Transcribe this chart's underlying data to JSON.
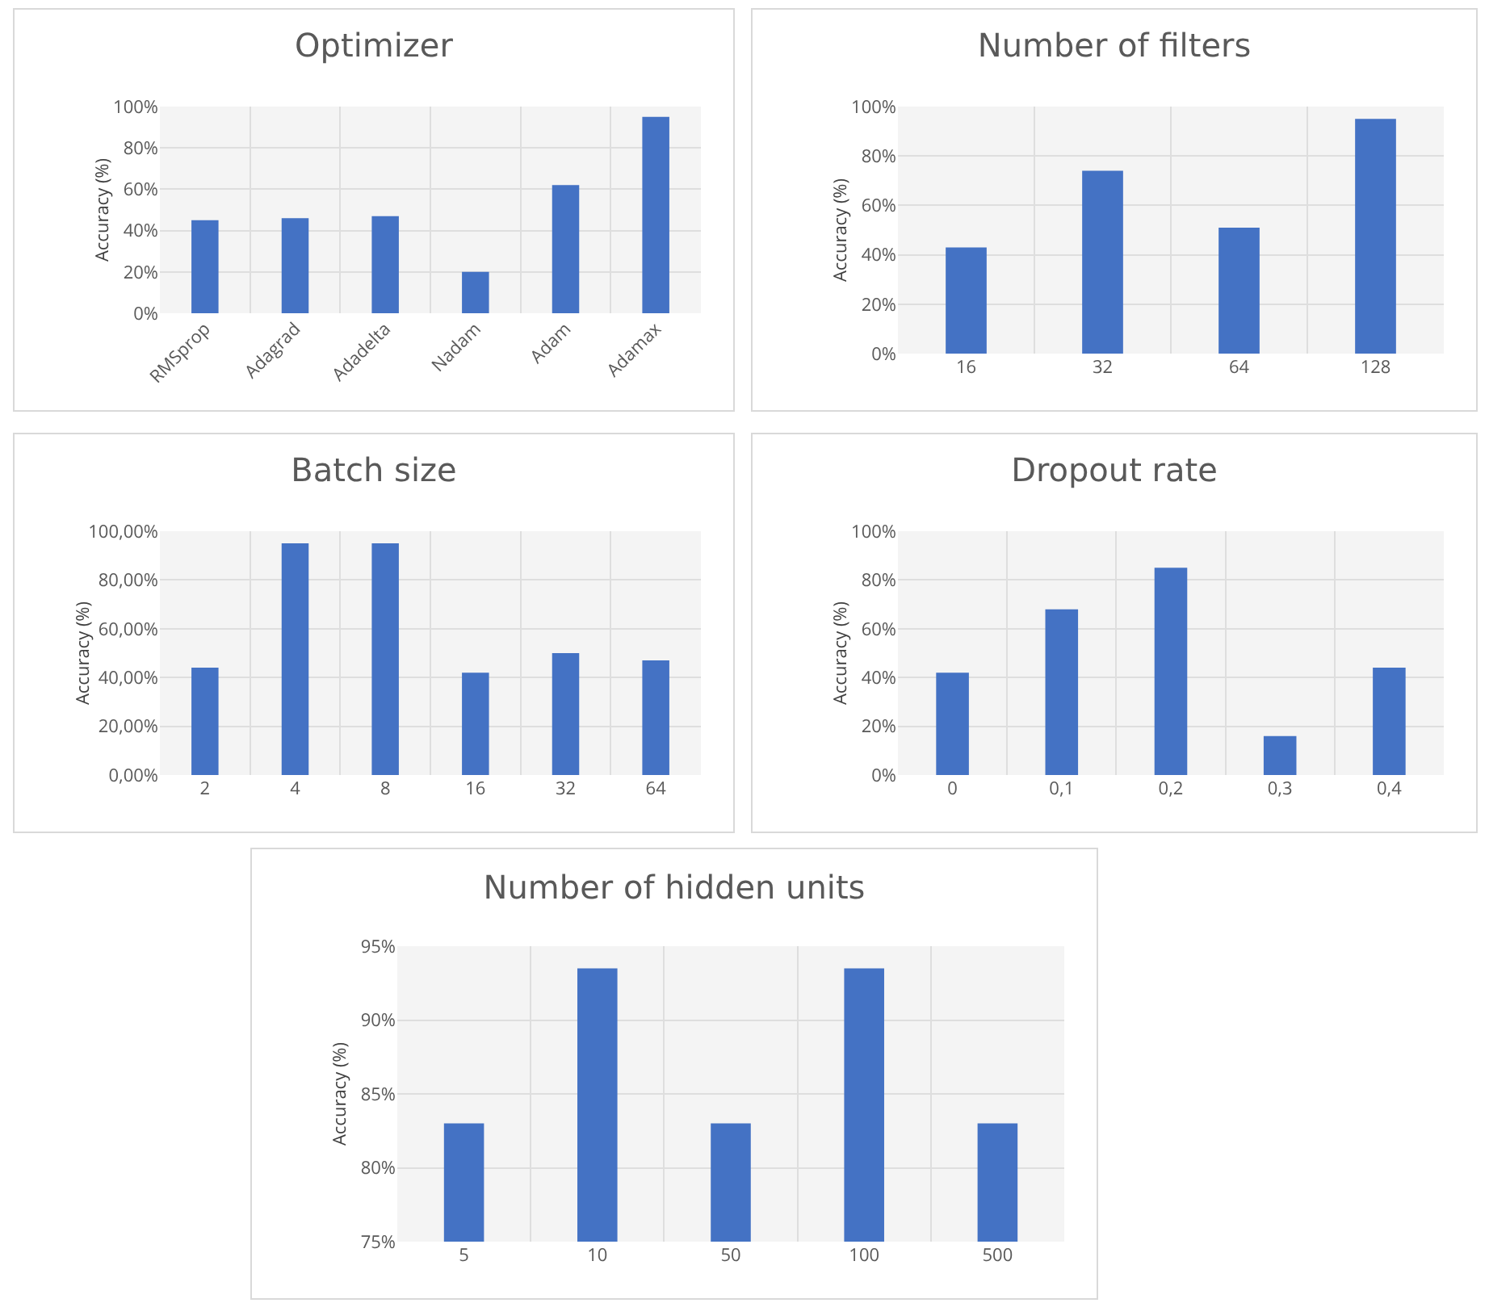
{
  "chart_data": [
    {
      "type": "bar",
      "title": "Optimizer",
      "ylabel": "Accuracy (%)",
      "categories": [
        "RMSprop",
        "Adagrad",
        "Adadelta",
        "Nadam",
        "Adam",
        "Adamax"
      ],
      "values": [
        45,
        46,
        47,
        20,
        62,
        95
      ],
      "color": "#4472c4",
      "ylim": [
        0,
        100
      ],
      "yticks": [
        {
          "value": 0,
          "label": "0%"
        },
        {
          "value": 20,
          "label": "20%"
        },
        {
          "value": 40,
          "label": "40%"
        },
        {
          "value": 60,
          "label": "60%"
        },
        {
          "value": 80,
          "label": "80%"
        },
        {
          "value": 100,
          "label": "100%"
        }
      ],
      "grid": true
    },
    {
      "type": "bar",
      "title": "Number of filters",
      "ylabel": "Accuracy (%)",
      "categories": [
        "16",
        "32",
        "64",
        "128"
      ],
      "values": [
        43,
        74,
        51,
        95
      ],
      "color": "#4472c4",
      "ylim": [
        0,
        100
      ],
      "yticks": [
        {
          "value": 0,
          "label": "0%"
        },
        {
          "value": 20,
          "label": "20%"
        },
        {
          "value": 40,
          "label": "40%"
        },
        {
          "value": 60,
          "label": "60%"
        },
        {
          "value": 80,
          "label": "80%"
        },
        {
          "value": 100,
          "label": "100%"
        }
      ],
      "grid": true
    },
    {
      "type": "bar",
      "title": "Batch size",
      "ylabel": "Accuracy (%)",
      "categories": [
        "2",
        "4",
        "8",
        "16",
        "32",
        "64"
      ],
      "values": [
        44,
        95,
        95,
        42,
        50,
        47
      ],
      "color": "#4472c4",
      "ylim": [
        0,
        100
      ],
      "yticks": [
        {
          "value": 0,
          "label": "0,00%"
        },
        {
          "value": 20,
          "label": "20,00%"
        },
        {
          "value": 40,
          "label": "40,00%"
        },
        {
          "value": 60,
          "label": "60,00%"
        },
        {
          "value": 80,
          "label": "80,00%"
        },
        {
          "value": 100,
          "label": "100,00%"
        }
      ],
      "grid": true
    },
    {
      "type": "bar",
      "title": "Dropout rate",
      "ylabel": "Accuracy (%)",
      "categories": [
        "0",
        "0,1",
        "0,2",
        "0,3",
        "0,4"
      ],
      "values": [
        42,
        68,
        85,
        16,
        44
      ],
      "color": "#4472c4",
      "ylim": [
        0,
        100
      ],
      "yticks": [
        {
          "value": 0,
          "label": "0%"
        },
        {
          "value": 20,
          "label": "20%"
        },
        {
          "value": 40,
          "label": "40%"
        },
        {
          "value": 60,
          "label": "60%"
        },
        {
          "value": 80,
          "label": "80%"
        },
        {
          "value": 100,
          "label": "100%"
        }
      ],
      "grid": true
    },
    {
      "type": "bar",
      "title": "Number of hidden units",
      "ylabel": "Accuracy (%)",
      "categories": [
        "5",
        "10",
        "50",
        "100",
        "500"
      ],
      "values": [
        83,
        93.5,
        83,
        93.5,
        83
      ],
      "color": "#4472c4",
      "ylim": [
        75,
        95
      ],
      "yticks": [
        {
          "value": 75,
          "label": "75%"
        },
        {
          "value": 80,
          "label": "80%"
        },
        {
          "value": 85,
          "label": "85%"
        },
        {
          "value": 90,
          "label": "90%"
        },
        {
          "value": 95,
          "label": "95%"
        }
      ],
      "grid": true
    }
  ]
}
